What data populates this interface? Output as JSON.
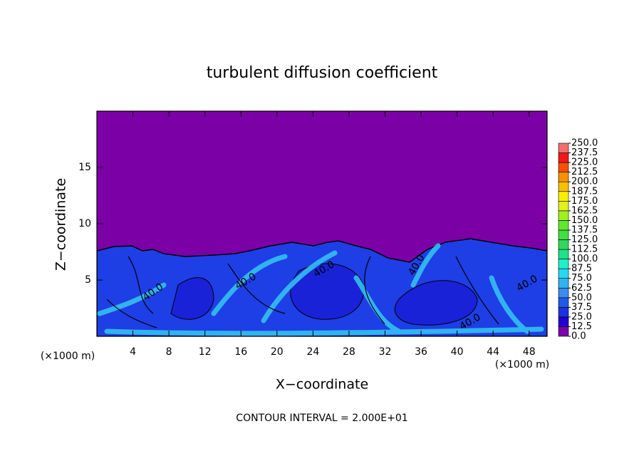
{
  "chart_data": {
    "type": "contour",
    "title": "turbulent diffusion coefficient",
    "xlabel": "X−coordinate",
    "ylabel": "Z−coordinate",
    "x_unit_labels": [
      "(×1000 m)",
      "(×1000 m)"
    ],
    "footer": "CONTOUR INTERVAL = 2.000E+01",
    "contour_labels": [
      "40.0",
      "40.0",
      "40.0",
      "40.0",
      "40.0",
      "40.0"
    ],
    "xlim": [
      0,
      50
    ],
    "xticks": [
      4,
      8,
      12,
      16,
      20,
      24,
      28,
      32,
      36,
      40,
      44,
      48
    ],
    "ylim": [
      0,
      20
    ],
    "yticks": [
      5,
      10,
      15
    ],
    "colorbar": {
      "levels": [
        {
          "value": 0,
          "label": "0.0"
        },
        {
          "value": 12.5,
          "label": "12.5"
        },
        {
          "value": 25,
          "label": "25.0"
        },
        {
          "value": 37.5,
          "label": "37.5"
        },
        {
          "value": 50,
          "label": "50.0"
        },
        {
          "value": 62.5,
          "label": "62.5"
        },
        {
          "value": 75,
          "label": "75.0"
        },
        {
          "value": 87.5,
          "label": "87.5"
        },
        {
          "value": 100,
          "label": "100.0"
        },
        {
          "value": 112.5,
          "label": "112.5"
        },
        {
          "value": 125,
          "label": "125.0"
        },
        {
          "value": 137.5,
          "label": "137.5"
        },
        {
          "value": 150,
          "label": "150.0"
        },
        {
          "value": 162.5,
          "label": "162.5"
        },
        {
          "value": 175,
          "label": "175.0"
        },
        {
          "value": 187.5,
          "label": "187.5"
        },
        {
          "value": 200,
          "label": "200.0"
        },
        {
          "value": 212.5,
          "label": "212.5"
        },
        {
          "value": 225,
          "label": "225.0"
        },
        {
          "value": 237.5,
          "label": "237.5"
        },
        {
          "value": 250,
          "label": "250.0"
        }
      ],
      "colors": [
        "#7b00a6",
        "#2000d0",
        "#1c32e0",
        "#1e5ae8",
        "#3a8cf0",
        "#30b4f0",
        "#28d8f0",
        "#20f0c8",
        "#20e088",
        "#30d860",
        "#40e040",
        "#60e830",
        "#a0f020",
        "#e0f020",
        "#f8f000",
        "#f8c000",
        "#f89000",
        "#f85000",
        "#f01818",
        "#f07070"
      ]
    }
  }
}
